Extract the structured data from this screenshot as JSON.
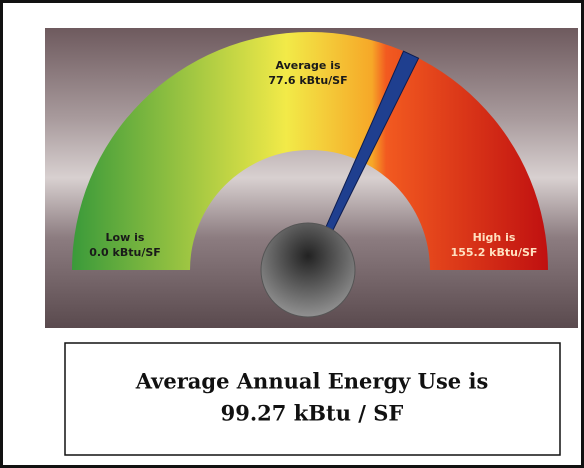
{
  "chart_data": {
    "type": "gauge",
    "range": [
      0,
      155.2
    ],
    "average": 77.6,
    "value": 99.27,
    "low_label": [
      "Low is",
      "0.0 kBtu/SF"
    ],
    "average_label": [
      "Average is",
      "77.6 kBtu/SF"
    ],
    "high_label": [
      "High is",
      "155.2 kBtu/SF"
    ],
    "title": [
      "Average Annual Energy Use is",
      "99.27 kBtu / SF"
    ],
    "needle_color": "#1f3f8f"
  }
}
